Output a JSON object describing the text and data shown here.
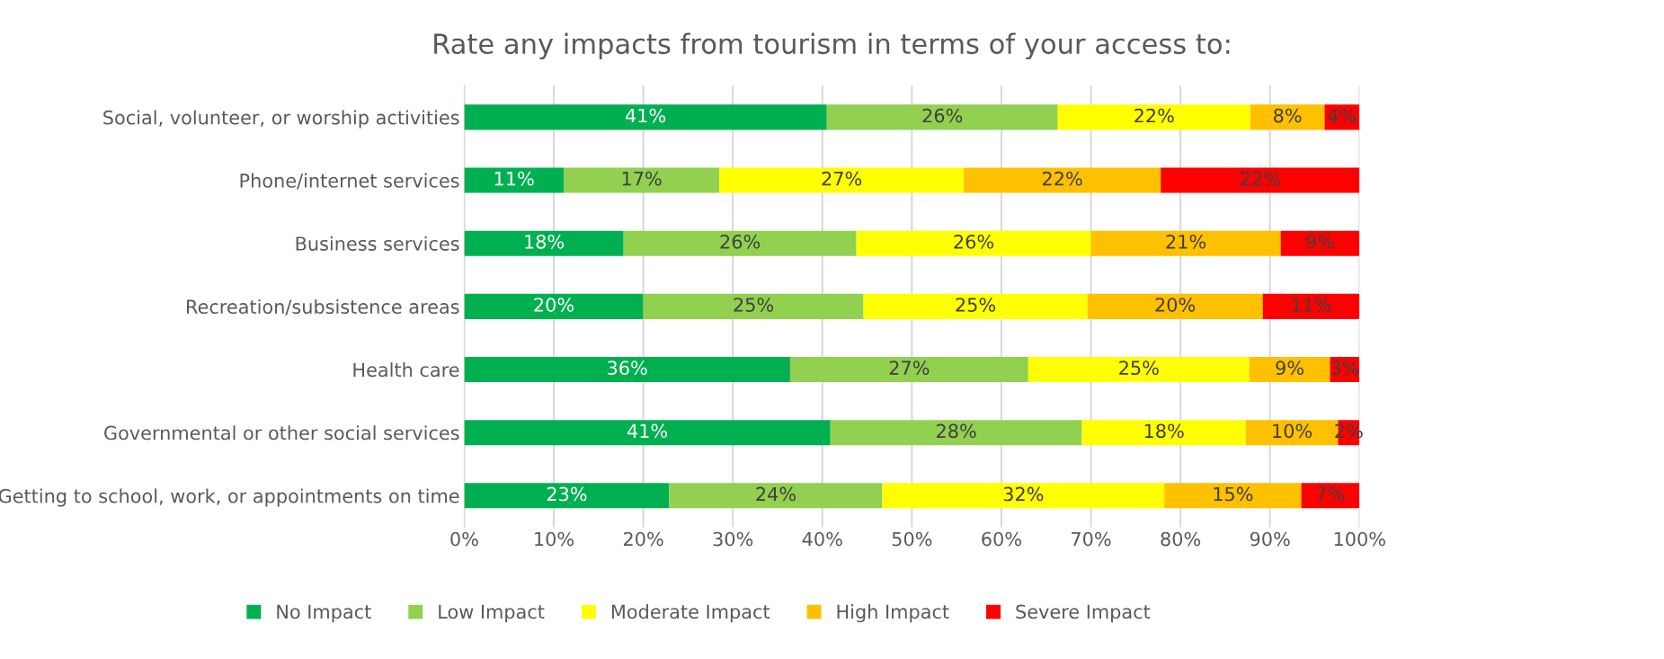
{
  "chart_data": {
    "type": "bar",
    "orientation": "horizontal",
    "stacked": true,
    "title": "Rate any impacts from tourism in terms of your access to:",
    "categories": [
      "Social, volunteer, or worship activities",
      "Phone/internet services",
      "Business services",
      "Recreation/subsistence areas",
      "Health care",
      "Governmental or other social services",
      "Getting to school, work, or appointments on time"
    ],
    "series": [
      {
        "name": "No Impact",
        "color": "#00b050",
        "values": [
          40.5,
          11.1,
          17.8,
          20.0,
          36.4,
          40.9,
          22.9
        ],
        "value_labels": [
          "41%",
          "11%",
          "18%",
          "20%",
          "36%",
          "41%",
          "23%"
        ]
      },
      {
        "name": "Low Impact",
        "color": "#92d050",
        "values": [
          25.8,
          17.4,
          26.0,
          24.6,
          26.6,
          28.1,
          23.8
        ],
        "value_labels": [
          "26%",
          "17%",
          "26%",
          "25%",
          "27%",
          "28%",
          "24%"
        ]
      },
      {
        "name": "Moderate Impact",
        "color": "#ffff00",
        "values": [
          21.5,
          27.3,
          26.2,
          25.0,
          24.7,
          18.3,
          31.5
        ],
        "value_labels": [
          "22%",
          "27%",
          "26%",
          "25%",
          "25%",
          "18%",
          "32%"
        ]
      },
      {
        "name": "High Impact",
        "color": "#ffc000",
        "values": [
          8.3,
          22.0,
          21.2,
          19.6,
          9.0,
          10.3,
          15.3
        ],
        "value_labels": [
          "8%",
          "22%",
          "21%",
          "20%",
          "9%",
          "10%",
          "15%"
        ]
      },
      {
        "name": "Severe Impact",
        "color": "#ff0000",
        "values": [
          3.9,
          22.2,
          8.8,
          10.8,
          3.3,
          2.4,
          6.5
        ],
        "value_labels": [
          "4%",
          "22%",
          "9%",
          "11%",
          "3%",
          "2%",
          "7%"
        ]
      }
    ],
    "xlim": [
      0,
      100
    ],
    "xticks": [
      {
        "value": 0,
        "label": "0%"
      },
      {
        "value": 10,
        "label": "10%"
      },
      {
        "value": 20,
        "label": "20%"
      },
      {
        "value": 30,
        "label": "30%"
      },
      {
        "value": 40,
        "label": "40%"
      },
      {
        "value": 50,
        "label": "50%"
      },
      {
        "value": 60,
        "label": "60%"
      },
      {
        "value": 70,
        "label": "70%"
      },
      {
        "value": 80,
        "label": "80%"
      },
      {
        "value": 90,
        "label": "90%"
      },
      {
        "value": 100,
        "label": "100%"
      }
    ],
    "grid": "x",
    "legend": "bottom"
  }
}
